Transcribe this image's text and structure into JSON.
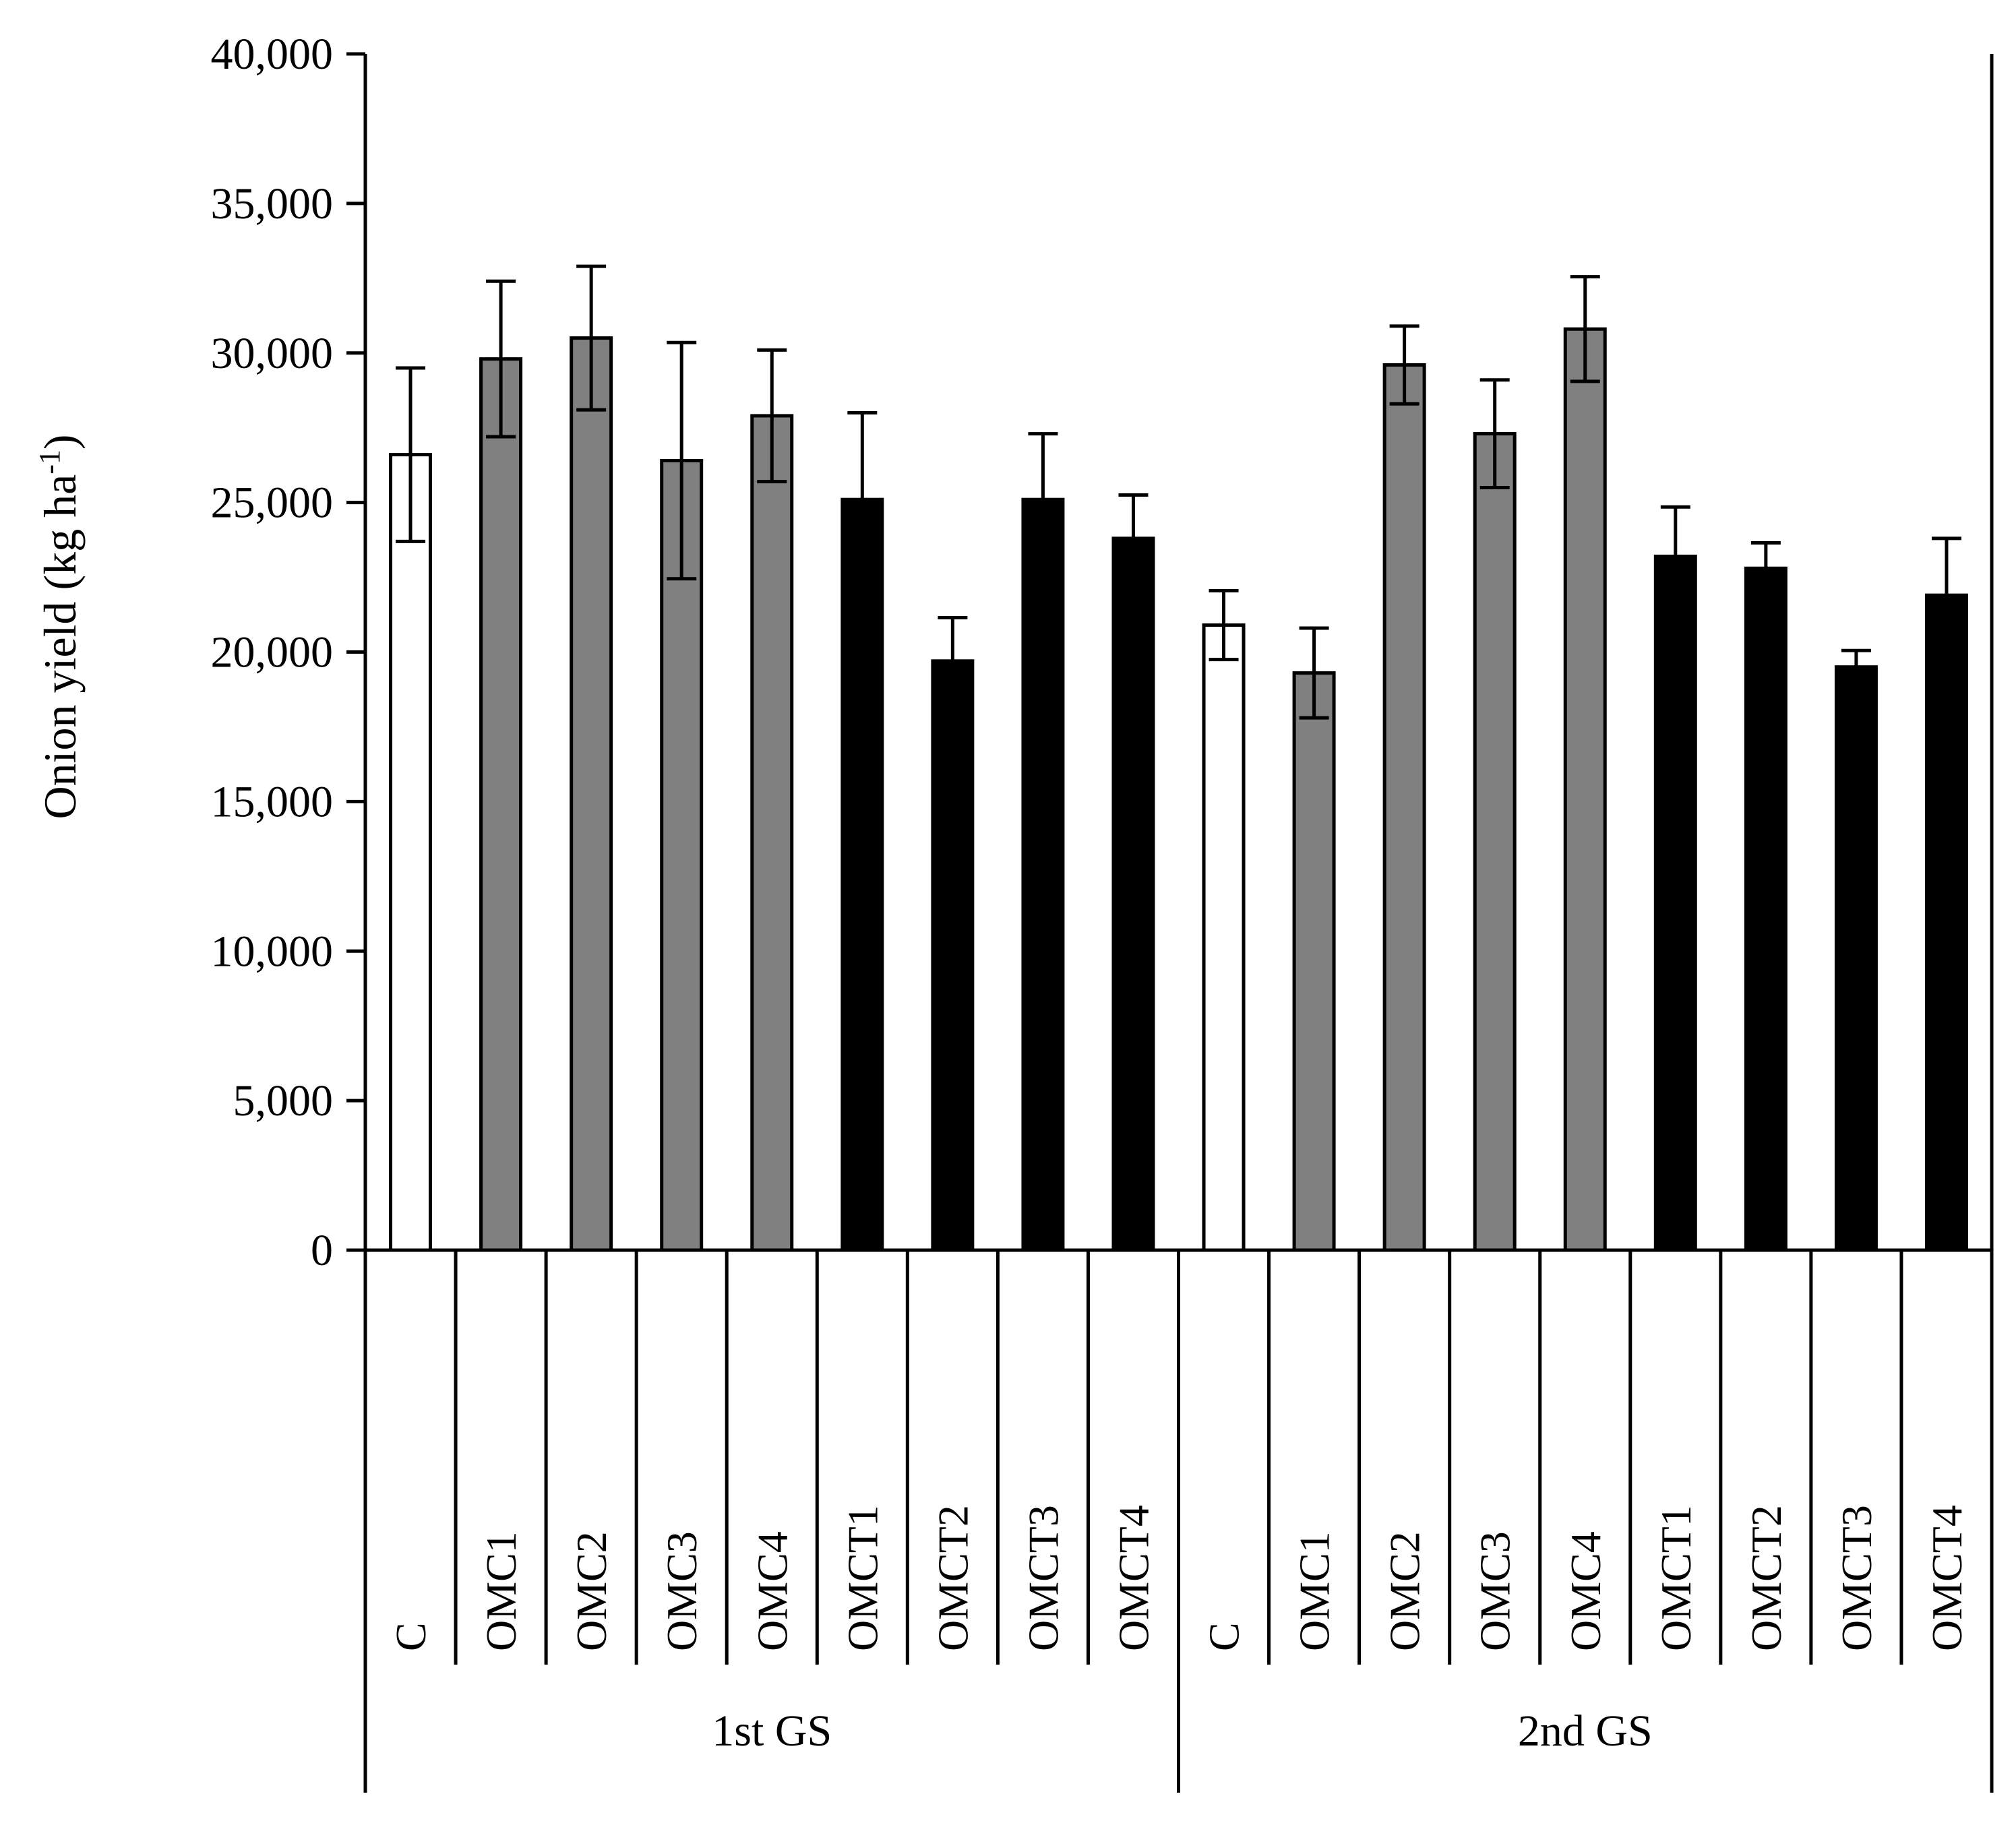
{
  "chart_data": {
    "type": "bar",
    "ylabel_main": "Onion yield (kg ha",
    "ylabel_sup": "-1",
    "ylabel_close": ")",
    "ylim": [
      0,
      40000
    ],
    "yticks": [
      "0",
      "5,000",
      "10,000",
      "15,000",
      "20,000",
      "25,000",
      "30,000",
      "35,000",
      "40,000"
    ],
    "ytick_values": [
      0,
      5000,
      10000,
      15000,
      20000,
      25000,
      30000,
      35000,
      40000
    ],
    "grid": false,
    "colors": {
      "C": "#ffffff",
      "OMC": "#808080",
      "OMCT": "#000000"
    },
    "groups": [
      {
        "name": "1st GS",
        "categories": [
          "C",
          "OMC1",
          "OMC2",
          "OMC3",
          "OMC4",
          "OMCT1",
          "OMCT2",
          "OMCT3",
          "OMCT4"
        ],
        "values": [
          26600,
          29800,
          30500,
          26400,
          27900,
          25100,
          19700,
          25100,
          23800
        ],
        "errors": [
          2900,
          2600,
          2400,
          3950,
          2200,
          2900,
          1450,
          2200,
          1450
        ]
      },
      {
        "name": "2nd GS",
        "categories": [
          "C",
          "OMC1",
          "OMC2",
          "OMC3",
          "OMC4",
          "OMCT1",
          "OMCT2",
          "OMCT3",
          "OMCT4"
        ],
        "values": [
          20900,
          19300,
          29600,
          27300,
          30800,
          23200,
          22800,
          19500,
          21900
        ],
        "errors": [
          1150,
          1500,
          1300,
          1800,
          1750,
          1650,
          850,
          550,
          1900
        ]
      }
    ]
  }
}
